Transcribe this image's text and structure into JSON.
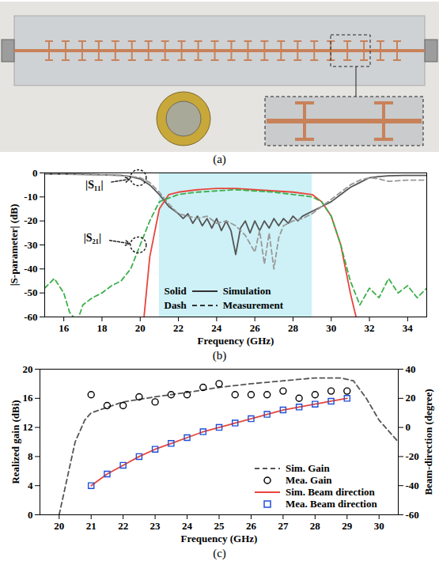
{
  "photo": {
    "caption": "(a)"
  },
  "chart_data": [
    {
      "type": "line",
      "caption": "(b)",
      "x_label": "Frequency (GHz)",
      "y_label": "|S-parameter| (dB)",
      "xlim": [
        15,
        35
      ],
      "xticks": [
        16,
        18,
        20,
        22,
        24,
        26,
        28,
        30,
        32,
        34
      ],
      "ylim": [
        -60,
        0
      ],
      "yticks": [
        0,
        -10,
        -20,
        -30,
        -40,
        -50,
        -60
      ],
      "shaded_range": [
        21,
        29
      ],
      "legend": "lower center",
      "legend_items": [
        {
          "key": "Solid",
          "name": "Simulation",
          "line_style": "solid"
        },
        {
          "key": "Dash",
          "name": "Measurement",
          "line_style": "dashed"
        }
      ],
      "groups": [
        {
          "name": "|S₁₁|",
          "label_at": [
            17.6,
            -5
          ],
          "arrow_to": [
            19.9,
            -2
          ],
          "series": [
            {
              "source": "Simulation",
              "color": "#555555",
              "x": [
                15,
                16,
                17,
                18,
                19,
                19.5,
                20,
                20.5,
                21,
                21.5,
                22,
                22.25,
                22.5,
                22.75,
                23,
                23.25,
                23.5,
                23.75,
                24,
                24.25,
                24.5,
                24.75,
                25,
                25.25,
                25.5,
                25.75,
                26,
                26.25,
                26.5,
                26.75,
                27,
                27.25,
                27.5,
                27.75,
                28,
                28.25,
                28.5,
                29,
                29.5,
                30,
                30.5,
                31,
                31.5,
                32,
                32.5,
                33,
                34,
                35
              ],
              "values": [
                -0.5,
                -0.5,
                -0.6,
                -0.8,
                -1,
                -1.5,
                -2.5,
                -5,
                -9,
                -14,
                -17,
                -19,
                -17,
                -21,
                -18,
                -22,
                -19,
                -23,
                -19,
                -24,
                -20,
                -24,
                -34,
                -23,
                -20,
                -25,
                -20,
                -24,
                -20,
                -23,
                -19,
                -22,
                -19,
                -21,
                -18,
                -20,
                -18,
                -16,
                -14,
                -12,
                -9,
                -6,
                -4,
                -2,
                -1.5,
                -1.2,
                -1,
                -1
              ]
            },
            {
              "source": "Measurement",
              "color": "#999999",
              "x": [
                15,
                16,
                17,
                18,
                19,
                19.5,
                20,
                20.5,
                21,
                21.5,
                22,
                22.5,
                23,
                23.5,
                24,
                24.5,
                25,
                25.5,
                26,
                26.25,
                26.5,
                26.75,
                27,
                27.25,
                27.5,
                28,
                28.5,
                29,
                29.5,
                30,
                30.5,
                31,
                31.5,
                32,
                32.5,
                33,
                34,
                35
              ],
              "values": [
                -0.5,
                -0.5,
                -0.6,
                -0.8,
                -1,
                -1.5,
                -2,
                -4,
                -8,
                -13,
                -17,
                -18,
                -19,
                -18,
                -21,
                -20,
                -22,
                -26,
                -33,
                -24,
                -38,
                -25,
                -40,
                -27,
                -22,
                -20,
                -19,
                -17,
                -14,
                -11,
                -8,
                -5,
                -3,
                -2,
                -2.5,
                -3.5,
                -3,
                -3
              ]
            }
          ]
        },
        {
          "name": "|S₂₁|",
          "label_at": [
            17.5,
            -27
          ],
          "arrow_to": [
            19.9,
            -30
          ],
          "series": [
            {
              "source": "Simulation",
              "color": "#e8453c",
              "x": [
                20.2,
                20.5,
                21,
                21.5,
                22,
                23,
                24,
                25,
                26,
                27,
                28,
                29,
                29.5,
                30,
                30.5,
                31,
                31.3
              ],
              "values": [
                -60,
                -35,
                -15,
                -9,
                -8,
                -7,
                -6.5,
                -6.5,
                -7,
                -7.5,
                -8,
                -9,
                -12,
                -18,
                -30,
                -50,
                -60
              ]
            },
            {
              "source": "Measurement",
              "color": "#3cb04a",
              "x": [
                15,
                15.5,
                16,
                16.3,
                16.7,
                17,
                17.5,
                18,
                18.5,
                19,
                19.5,
                20,
                20.5,
                21,
                22,
                23,
                24,
                25,
                26,
                27,
                28,
                29,
                29.5,
                30,
                30.5,
                31,
                31.5,
                32,
                32.5,
                33,
                33.5,
                34,
                34.5,
                35
              ],
              "values": [
                -48,
                -44,
                -50,
                -58,
                -62,
                -55,
                -52,
                -50,
                -47,
                -45,
                -40,
                -30,
                -20,
                -12,
                -9,
                -8,
                -7.5,
                -7,
                -7.5,
                -8,
                -9,
                -10,
                -12,
                -18,
                -30,
                -45,
                -55,
                -48,
                -52,
                -44,
                -50,
                -47,
                -52,
                -48
              ]
            }
          ]
        }
      ]
    },
    {
      "type": "line",
      "caption": "(c)",
      "x_label": "Frequency (GHz)",
      "y_label": "Realized gain (dBi)",
      "y2_label": "Beam-direction (degree)",
      "xlim": [
        19.4,
        30.6
      ],
      "xticks": [
        20,
        21,
        22,
        23,
        24,
        25,
        26,
        27,
        28,
        29,
        30
      ],
      "ylim": [
        0,
        20
      ],
      "yticks": [
        0,
        4,
        8,
        12,
        16,
        20
      ],
      "y2lim": [
        -60,
        40
      ],
      "y2ticks": [
        -60,
        -40,
        -20,
        0,
        20,
        40
      ],
      "legend": "lower right",
      "series": [
        {
          "name": "Sim. Gain",
          "type": "line",
          "line_style": "dashed",
          "color": "#555555",
          "x": [
            20,
            20.2,
            20.5,
            20.8,
            21,
            22,
            23,
            24,
            25,
            26,
            27,
            28,
            28.8,
            29.2,
            29.6,
            30,
            30.6
          ],
          "values": [
            0,
            4,
            10,
            13,
            14,
            15.5,
            16.2,
            16.8,
            17.5,
            18,
            18.4,
            18.8,
            18.8,
            18.4,
            16,
            13,
            10
          ]
        },
        {
          "name": "Mea. Gain",
          "type": "scatter",
          "marker": "circle",
          "color": "#000000",
          "x": [
            21,
            21.5,
            22,
            22.5,
            23,
            23.5,
            24,
            24.5,
            25,
            25.5,
            26,
            26.5,
            27,
            27.5,
            28,
            28.5,
            29
          ],
          "values": [
            16.5,
            15,
            15,
            16.2,
            15.5,
            16.5,
            16.5,
            17.5,
            18,
            16.5,
            16.5,
            16.5,
            17,
            16,
            16.5,
            17,
            17
          ]
        },
        {
          "name": "Sim. Beam direction",
          "type": "line",
          "line_style": "solid",
          "color": "#e8453c",
          "axis": "y2",
          "x": [
            21,
            21.5,
            22,
            22.5,
            23,
            23.5,
            24,
            24.5,
            25,
            25.5,
            26,
            26.5,
            27,
            27.5,
            28,
            28.5,
            29
          ],
          "values": [
            -40,
            -32,
            -26,
            -20,
            -15,
            -11,
            -7,
            -3,
            0,
            3,
            6,
            9,
            12,
            14,
            16,
            18,
            20
          ]
        },
        {
          "name": "Mea. Beam direction",
          "type": "scatter",
          "marker": "square",
          "color": "#1f4fd8",
          "axis": "y2",
          "x": [
            21,
            21.5,
            22,
            22.5,
            23,
            23.5,
            24,
            24.5,
            25,
            25.5,
            26,
            26.5,
            27,
            27.5,
            28,
            28.5,
            29
          ],
          "values": [
            -40,
            -32,
            -26,
            -20,
            -15,
            -11,
            -7,
            -3,
            0,
            3,
            6,
            9,
            12,
            14,
            16,
            18,
            20
          ]
        }
      ]
    }
  ]
}
